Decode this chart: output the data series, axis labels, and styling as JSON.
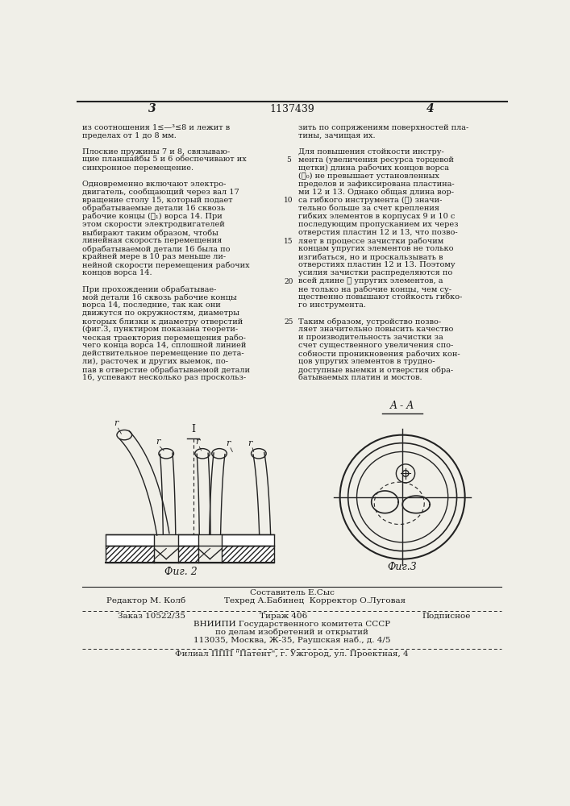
{
  "page_number_left": "3",
  "patent_number": "1137439",
  "page_number_right": "4",
  "text_left_col": [
    "из соотношения 1≤—³≤8 и лежит в",
    "пределах от 1 до 8 мм.",
    "",
    "Плоские пружины 7 и 8, связываю-",
    "щие планшайбы 5 и 6 обеспечивают их",
    "синхронное перемещение.",
    "",
    "Одновременно включают электро-",
    "двигатель, сообщающий через вал 17",
    "вращение столу 15, который подает",
    "обрабатываемые детали 16 сквозь",
    "рабочие концы (ℓ₁) ворса 14. При",
    "этом скорости электродвигателей",
    "выбирают таким образом, чтобы",
    "линейная скорость перемещения",
    "обрабатываемой детали 16 была по",
    "крайней мере в 10 раз меньше ли-",
    "нейной скорости перемещения рабочих",
    "концов ворса 14.",
    "",
    "При прохождении обрабатывае-",
    "мой детали 16 сквозь рабочие концы",
    "ворса 14, последние, так как они",
    "движутся по окружностям, диаметры",
    "которых близки к диаметру отверстий",
    "(фиг.3, пунктиром показана теорети-",
    "ческая траектория перемещения рабо-",
    "чего конца ворса 14, сплошной линией",
    "действительное перемещение по дета-",
    "ли), расточек и других выемок, по-",
    "пав в отверстие обрабатываемой детали",
    "16, успевают несколько раз проскольз-"
  ],
  "text_right_col": [
    "зить по сопряжениям поверхностей пла-",
    "тины, зачищая их.",
    "",
    "Для повышения стойкости инстру-",
    "мента (увеличения ресурса торцевой",
    "щетки) длина рабочих концов ворса",
    "(ℓ₀) не превышает установленных",
    "пределов и зафиксирована пластина-",
    "ми 12 и 13. Однако общая длина вор-",
    "са гибкого инструмента (ℓ) значи-",
    "тельно больше за счет крепления",
    "гибких элементов в корпусах 9 и 10 с",
    "последующим пропусканием их через",
    "отверстия пластин 12 и 13, что позво-",
    "ляет в процессе зачистки рабочим",
    "концам упругих элементов не только",
    "изгибаться, но и проскальзывать в",
    "отверстиях пластин 12 и 13. Поэтому",
    "усилия зачистки распределяются по",
    "всей длине ℓ упругих элементов, а",
    "не только на рабочие концы, чем су-",
    "щественно повышают стойкость гибко-",
    "го инструмента.",
    "",
    "Таким образом, устройство позво-",
    "ляет значительно повысить качество",
    "и производительность зачистки за",
    "счет существенного увеличения спо-",
    "собности проникновения рабочих кон-",
    "цов упругих элементов в трудно-",
    "доступные выемки и отверстия обра-",
    "батываемых платин и мостов."
  ],
  "section_label_AA": "A - A",
  "fig2_label": "Фиг. 2",
  "fig3_label": "Фиг.3",
  "fig2_arrow_label": "I",
  "footer_editor": "Редактор М. Колб",
  "footer_composer": "Составитель Е.Сыс",
  "footer_tech": "Техред А.Бабинец",
  "footer_corrector": "Корректор О.Луговая",
  "footer_order": "Заказ 10522/35",
  "footer_copies": "Тираж 406",
  "footer_sub": "Подписное",
  "footer_org": "ВНИИПИ Государственного комитета СССР",
  "footer_dept": "по делам изобретений и открытий",
  "footer_addr": "113035, Москва, Ж-35, Раушская наб., д. 4/5",
  "footer_branch": "Филиал ППП \"Патент\", г. Ужгород, ул. Проектная, 4",
  "bg_color": "#f0efe8",
  "text_color": "#1a1a1a",
  "line_color": "#222222"
}
